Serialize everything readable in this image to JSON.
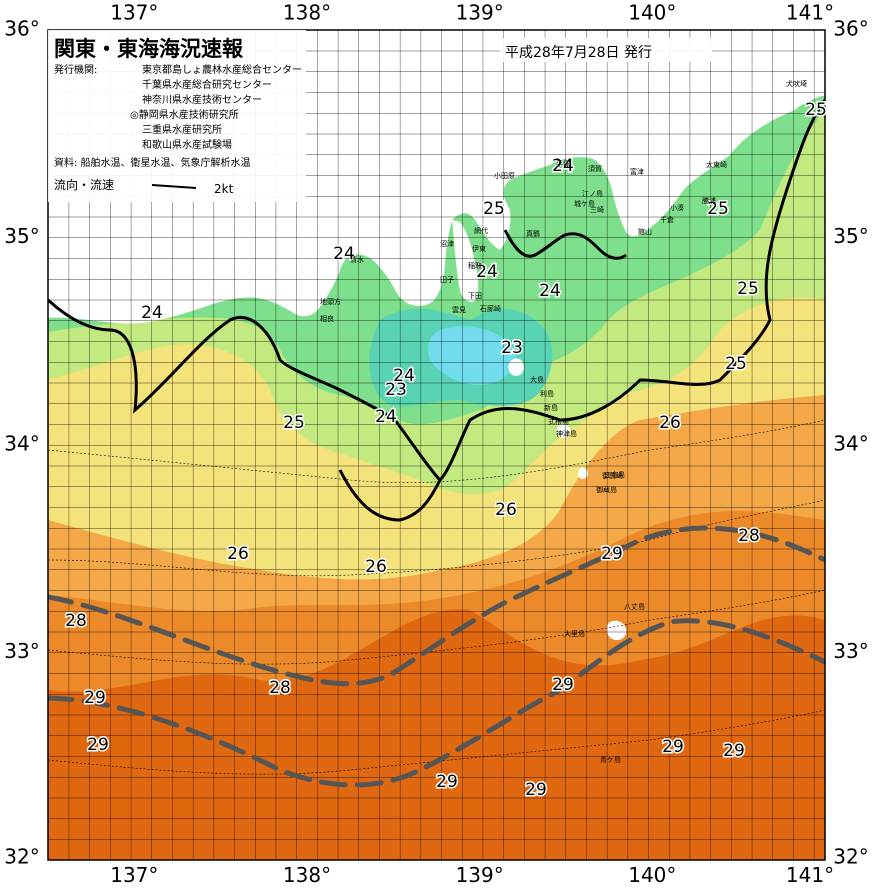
{
  "header": {
    "title": "関東・東海海況速報",
    "date": "平成28年7月28日 発行",
    "issuer_label": "発行機関:",
    "issuers": [
      "東京都島しょ農林水産総合センター",
      "千葉県水産総合研究センター",
      "神奈川県水産技術センター",
      "◎静岡県水産技術研究所",
      "三重県水産研究所",
      "和歌山県水産試験場"
    ],
    "source": "資料: 船舶水温、衛星水温、気象庁解析水温",
    "legend_label": "流向・流速",
    "legend_speed": "2kt"
  },
  "axes": {
    "lon_labels": [
      "137°",
      "138°",
      "139°",
      "140°",
      "141°"
    ],
    "lat_labels": [
      "36°",
      "35°",
      "34°",
      "33°",
      "32°"
    ],
    "lon_range": [
      136.5,
      141.0
    ],
    "lat_range": [
      32.0,
      36.0
    ]
  },
  "colors": {
    "sst_29": "#e06810",
    "sst_28": "#ec8a2a",
    "sst_27": "#f4a848",
    "sst_26": "#f4e27a",
    "sst_25": "#c2ea80",
    "sst_24": "#7ee08c",
    "sst_23": "#58d4b4",
    "sst_22": "#70dcee",
    "land": "#ffffff",
    "kuroshio_line": "#555555"
  },
  "isotherm_labels": [
    {
      "id": "25-ne-1",
      "text": "25"
    },
    {
      "id": "24-izu-n",
      "text": "24"
    },
    {
      "id": "25-sagami",
      "text": "25"
    },
    {
      "id": "25-boso",
      "text": "25"
    },
    {
      "id": "24-suruga-w",
      "text": "24"
    },
    {
      "id": "24-izu",
      "text": "24"
    },
    {
      "id": "25-east-1",
      "text": "25"
    },
    {
      "id": "25-east-2",
      "text": "25"
    },
    {
      "id": "24-ise",
      "text": "24"
    },
    {
      "id": "24-izu-s",
      "text": "24"
    },
    {
      "id": "23-sagami",
      "text": "23"
    },
    {
      "id": "24-enshu-1",
      "text": "24"
    },
    {
      "id": "23-enshu",
      "text": "23"
    },
    {
      "id": "24-enshu-2",
      "text": "24"
    },
    {
      "id": "25-enshu",
      "text": "25"
    },
    {
      "id": "26-east",
      "text": "26"
    },
    {
      "id": "26-izu",
      "text": "26"
    },
    {
      "id": "28-east",
      "text": "28"
    },
    {
      "id": "29-hachijo",
      "text": "29"
    },
    {
      "id": "26-west",
      "text": "26"
    },
    {
      "id": "26-center",
      "text": "26"
    },
    {
      "id": "28-west",
      "text": "28"
    },
    {
      "id": "29-sw-1",
      "text": "29"
    },
    {
      "id": "28-center",
      "text": "28"
    },
    {
      "id": "29-center",
      "text": "29"
    },
    {
      "id": "29-sw-2",
      "text": "29"
    },
    {
      "id": "29-se-1",
      "text": "29"
    },
    {
      "id": "29-se-2",
      "text": "29"
    },
    {
      "id": "29-south-1",
      "text": "29"
    },
    {
      "id": "29-south-2",
      "text": "29"
    }
  ],
  "place_names": [
    "犬吠埼",
    "太東崎",
    "勝浦",
    "小湊",
    "千倉",
    "館山",
    "富津",
    "須賀",
    "三崎",
    "城ケ島",
    "江ノ島",
    "平塚",
    "小田原",
    "真鶴",
    "網代",
    "伊東",
    "稲取",
    "下田",
    "石廊崎",
    "雲見",
    "田子",
    "沼津",
    "清水",
    "御前崎",
    "地頭方",
    "相良",
    "大島",
    "利島",
    "新島",
    "式根島",
    "神津島",
    "御蔵島",
    "三宅島",
    "八丈島",
    "大里島",
    "青ケ島"
  ]
}
